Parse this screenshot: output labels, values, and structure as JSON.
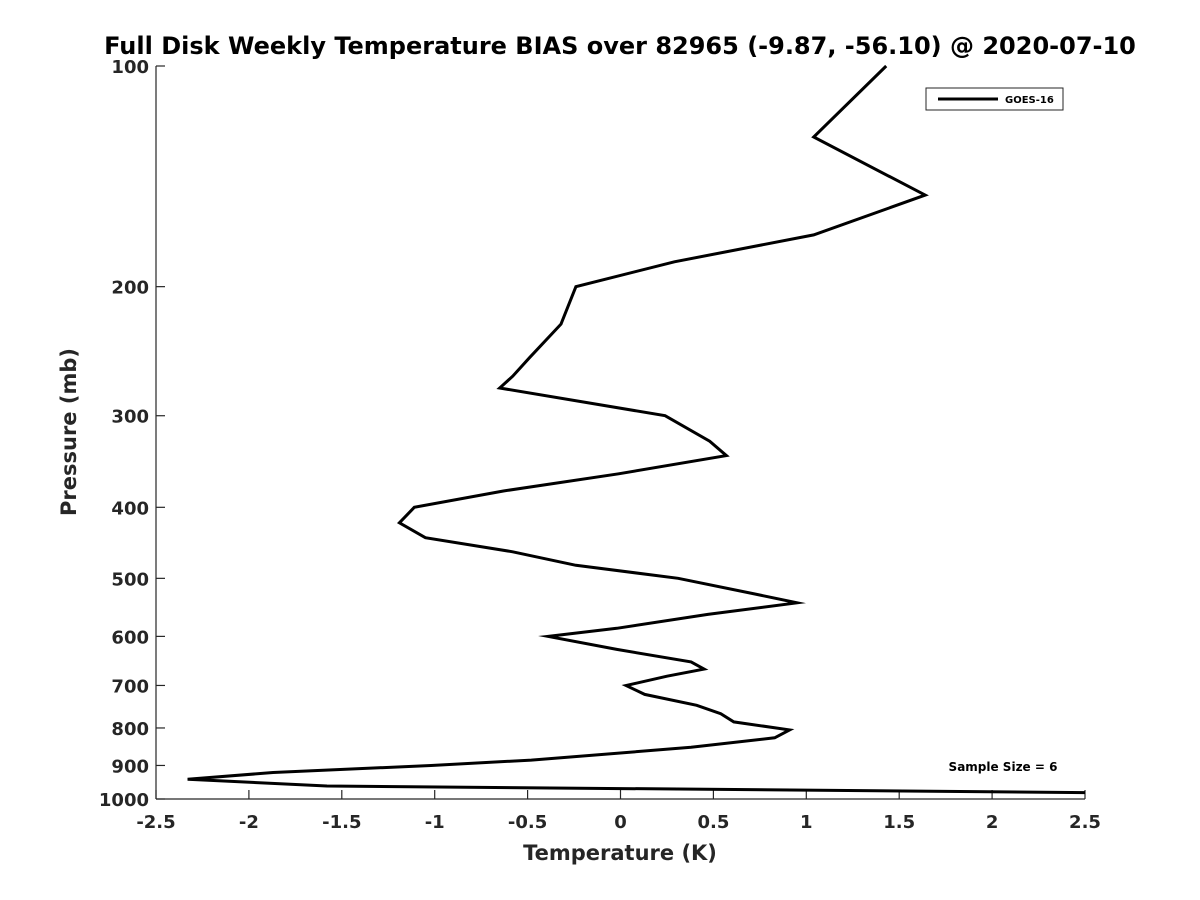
{
  "chart_data": {
    "type": "line",
    "title": "Full Disk Weekly Temperature BIAS over 82965 (-9.87, -56.10) @ 2020-07-10",
    "xlabel": "Temperature (K)",
    "ylabel": "Pressure (mb)",
    "xlim": [
      -2.5,
      2.5
    ],
    "ylim": [
      100,
      1000
    ],
    "y_scale": "log",
    "y_reversed": true,
    "grid": false,
    "legend_position": "top-right",
    "x_ticks": [
      "-2.5",
      "-2",
      "-1.5",
      "-1",
      "-0.5",
      "0",
      "0.5",
      "1",
      "1.5",
      "2",
      "2.5"
    ],
    "x_tick_values": [
      -2.5,
      -2,
      -1.5,
      -1,
      -0.5,
      0,
      0.5,
      1,
      1.5,
      2,
      2.5
    ],
    "y_ticks": [
      "100",
      "200",
      "300",
      "400",
      "500",
      "600",
      "700",
      "800",
      "900",
      "1000"
    ],
    "y_tick_values": [
      100,
      200,
      300,
      400,
      500,
      600,
      700,
      800,
      900,
      1000
    ],
    "annotation": "Sample Size = 6",
    "series": [
      {
        "name": "GOES-16",
        "color": "#000000",
        "points": [
          {
            "x": 1.43,
            "p": 100
          },
          {
            "x": 1.04,
            "p": 125
          },
          {
            "x": 1.64,
            "p": 150
          },
          {
            "x": 1.04,
            "p": 170
          },
          {
            "x": 0.29,
            "p": 185
          },
          {
            "x": -0.24,
            "p": 200
          },
          {
            "x": -0.32,
            "p": 225
          },
          {
            "x": -0.49,
            "p": 250
          },
          {
            "x": -0.58,
            "p": 265
          },
          {
            "x": -0.65,
            "p": 275
          },
          {
            "x": 0.24,
            "p": 300
          },
          {
            "x": 0.48,
            "p": 325
          },
          {
            "x": 0.57,
            "p": 340
          },
          {
            "x": -0.01,
            "p": 360
          },
          {
            "x": -0.63,
            "p": 380
          },
          {
            "x": -1.11,
            "p": 400
          },
          {
            "x": -1.19,
            "p": 420
          },
          {
            "x": -1.05,
            "p": 440
          },
          {
            "x": -0.58,
            "p": 460
          },
          {
            "x": -0.24,
            "p": 480
          },
          {
            "x": 0.31,
            "p": 500
          },
          {
            "x": 0.72,
            "p": 525
          },
          {
            "x": 0.95,
            "p": 540
          },
          {
            "x": 0.47,
            "p": 560
          },
          {
            "x": -0.02,
            "p": 585
          },
          {
            "x": -0.39,
            "p": 600
          },
          {
            "x": -0.02,
            "p": 625
          },
          {
            "x": 0.38,
            "p": 650
          },
          {
            "x": 0.45,
            "p": 665
          },
          {
            "x": 0.25,
            "p": 680
          },
          {
            "x": 0.03,
            "p": 700
          },
          {
            "x": 0.13,
            "p": 720
          },
          {
            "x": 0.41,
            "p": 745
          },
          {
            "x": 0.54,
            "p": 765
          },
          {
            "x": 0.61,
            "p": 785
          },
          {
            "x": 0.91,
            "p": 805
          },
          {
            "x": 0.83,
            "p": 825
          },
          {
            "x": 0.38,
            "p": 850
          },
          {
            "x": -0.48,
            "p": 885
          },
          {
            "x": -1.02,
            "p": 900
          },
          {
            "x": -1.87,
            "p": 920
          },
          {
            "x": -2.33,
            "p": 940
          },
          {
            "x": -1.58,
            "p": 960
          },
          {
            "x": 2.5,
            "p": 980
          }
        ]
      }
    ]
  }
}
